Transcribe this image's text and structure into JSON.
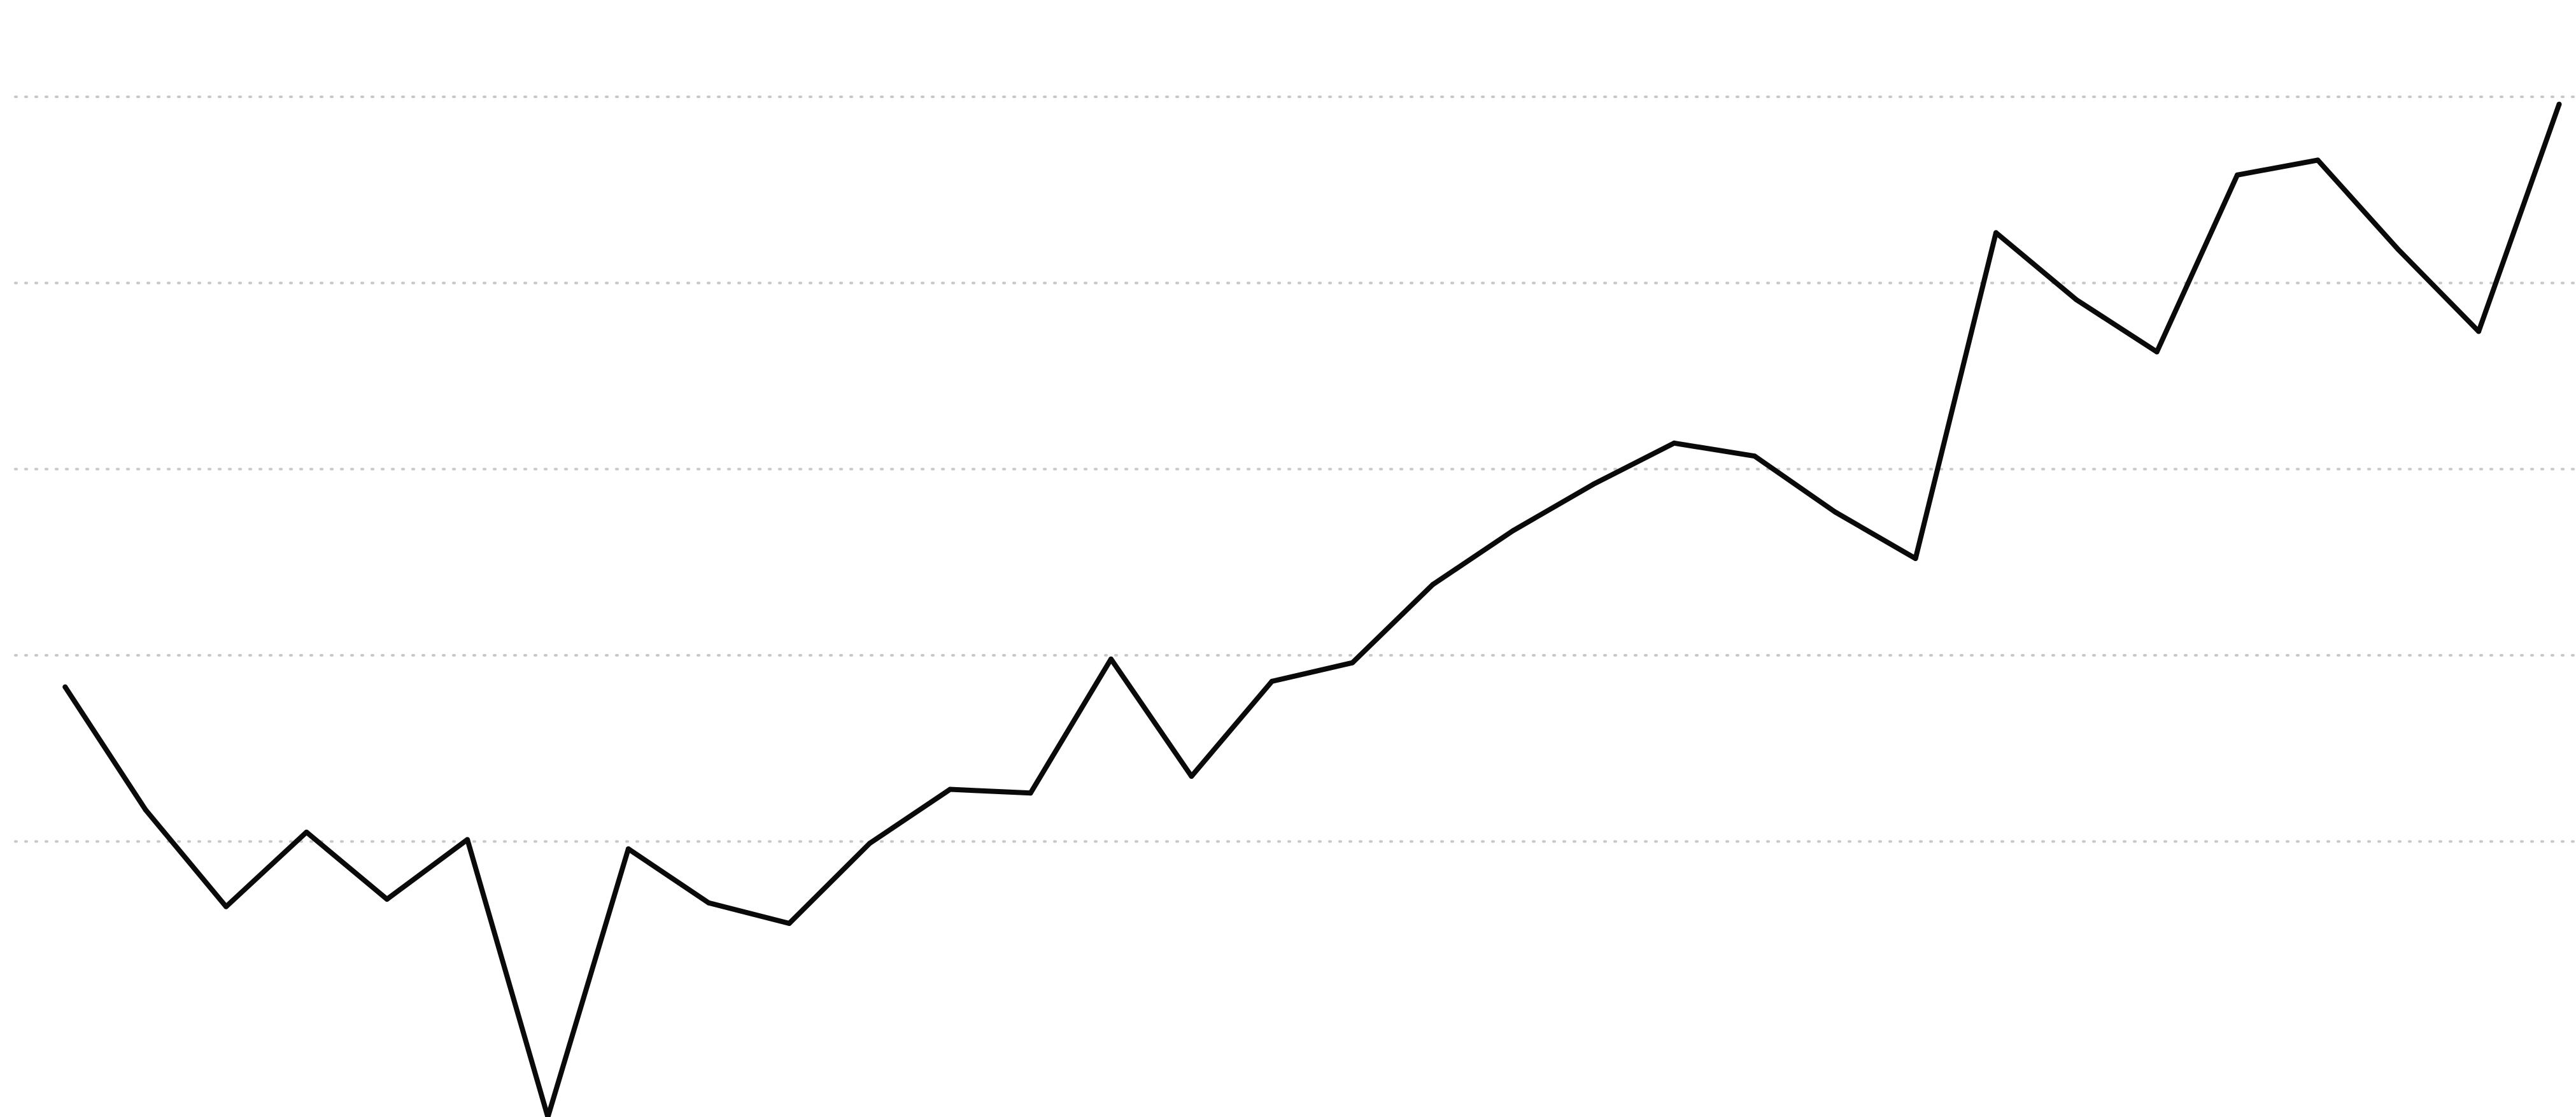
{
  "chart_data": {
    "type": "line",
    "title": "",
    "xlabel": "",
    "ylabel": "",
    "x": [
      1,
      2,
      3,
      4,
      5,
      6,
      7,
      8,
      9,
      10,
      11,
      12,
      13,
      14,
      15,
      16,
      17,
      18,
      19,
      20,
      21,
      22,
      23,
      24,
      25,
      26,
      27,
      28,
      29,
      30,
      31,
      32
    ],
    "xlim": [
      0.38,
      32.21
    ],
    "ylim": [
      -0.48,
      5.52
    ],
    "gridlines_y": [
      1,
      2,
      3,
      4,
      5
    ],
    "grid": true,
    "grid_axis": "y",
    "legend": false,
    "colors": {
      "line": "#0a0a0a",
      "grid": "#c8c8c8",
      "background": "#ffffff"
    },
    "series": [
      {
        "values": [
          1.83,
          1.17,
          0.65,
          1.05,
          0.69,
          1.01,
          -0.48,
          0.96,
          0.67,
          0.56,
          0.99,
          1.28,
          1.26,
          1.98,
          1.35,
          1.86,
          1.96,
          2.38,
          2.67,
          2.92,
          3.14,
          3.07,
          2.77,
          2.52,
          4.27,
          3.91,
          3.63,
          4.58,
          4.66,
          4.18,
          3.74,
          4.96
        ]
      }
    ]
  }
}
